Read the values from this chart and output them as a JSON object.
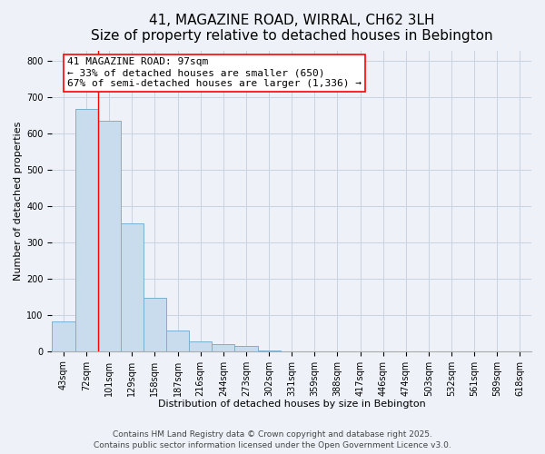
{
  "title": "41, MAGAZINE ROAD, WIRRAL, CH62 3LH",
  "subtitle": "Size of property relative to detached houses in Bebington",
  "xlabel": "Distribution of detached houses by size in Bebington",
  "ylabel": "Number of detached properties",
  "footer_line1": "Contains HM Land Registry data © Crown copyright and database right 2025.",
  "footer_line2": "Contains public sector information licensed under the Open Government Licence v3.0.",
  "bin_labels": [
    "43sqm",
    "72sqm",
    "101sqm",
    "129sqm",
    "158sqm",
    "187sqm",
    "216sqm",
    "244sqm",
    "273sqm",
    "302sqm",
    "331sqm",
    "359sqm",
    "388sqm",
    "417sqm",
    "446sqm",
    "474sqm",
    "503sqm",
    "532sqm",
    "561sqm",
    "589sqm",
    "618sqm"
  ],
  "bar_values": [
    83,
    668,
    635,
    352,
    148,
    57,
    28,
    20,
    15,
    3,
    0,
    0,
    0,
    0,
    0,
    0,
    0,
    0,
    0,
    0,
    0
  ],
  "bar_color": "#c8dcee",
  "bar_edge_color": "#7ab0d0",
  "grid_color": "#c8d4e0",
  "background_color": "#eef2f8",
  "red_line_bin_index": 2,
  "annotation_line1": "41 MAGAZINE ROAD: 97sqm",
  "annotation_line2": "← 33% of detached houses are smaller (650)",
  "annotation_line3": "67% of semi-detached houses are larger (1,336) →",
  "ylim": [
    0,
    830
  ],
  "title_fontsize": 11,
  "subtitle_fontsize": 9,
  "axis_label_fontsize": 8,
  "tick_fontsize": 7,
  "annotation_fontsize": 8,
  "footer_fontsize": 6.5
}
